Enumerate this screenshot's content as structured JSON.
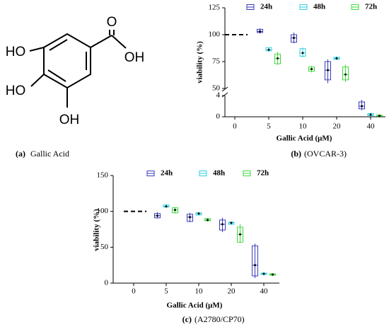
{
  "structure": {
    "atoms": [
      "HO",
      "HO",
      "OH",
      "O",
      "OH"
    ],
    "caption_label": "(a)",
    "caption": "Gallic Acid"
  },
  "chart_data": [
    {
      "type": "box",
      "caption_label": "(b)",
      "caption": "(OVCAR-3)",
      "x_label": "Gallic Acid (μM)",
      "y_label": "viability (%)",
      "categories": [
        "0",
        "5",
        "10",
        "20",
        "40"
      ],
      "ylim": [
        0,
        125
      ],
      "y_break": [
        4,
        50
      ],
      "yticks": [
        0,
        4,
        50,
        75,
        100,
        125
      ],
      "reference_value": 100,
      "legend": "top",
      "series": [
        {
          "name": "24h",
          "color": "#3a3ab8",
          "min": [
            null,
            101,
            92,
            55,
            1.2
          ],
          "q1": [
            null,
            102,
            93,
            58,
            1.5
          ],
          "median": [
            null,
            103,
            97,
            67,
            2
          ],
          "q3": [
            null,
            105,
            100,
            75,
            2.8
          ],
          "max": [
            null,
            106,
            102,
            77,
            3.2
          ]
        },
        {
          "name": "48h",
          "color": "#2fd0e0",
          "min": [
            null,
            84,
            79,
            77,
            0.1
          ],
          "q1": [
            null,
            85,
            80,
            77,
            0.2
          ],
          "median": [
            null,
            86,
            83,
            78,
            0.4
          ],
          "q3": [
            null,
            88,
            87,
            79,
            0.6
          ],
          "max": [
            null,
            88,
            88,
            80,
            0.8
          ]
        },
        {
          "name": "72h",
          "color": "#3fd83f",
          "min": [
            null,
            72,
            65,
            56,
            0
          ],
          "q1": [
            null,
            73,
            66,
            58,
            0.1
          ],
          "median": [
            null,
            78,
            68,
            63,
            0.2
          ],
          "q3": [
            null,
            82,
            70,
            70,
            0.3
          ],
          "max": [
            null,
            84,
            71,
            72,
            0.4
          ]
        }
      ]
    },
    {
      "type": "box",
      "caption_label": "(c)",
      "caption": "(A2780/CP70)",
      "x_label": "Gallic Acid (μM)",
      "y_label": "viability (%)",
      "categories": [
        "0",
        "5",
        "10",
        "20",
        "40"
      ],
      "ylim": [
        0,
        150
      ],
      "yticks": [
        0,
        50,
        100,
        150
      ],
      "reference_value": 100,
      "legend": "top",
      "series": [
        {
          "name": "24h",
          "color": "#3a3ab8",
          "min": [
            null,
            90,
            85,
            71,
            7
          ],
          "q1": [
            null,
            91,
            86,
            74,
            10
          ],
          "median": [
            null,
            94,
            92,
            82,
            25
          ],
          "q3": [
            null,
            97,
            96,
            88,
            52
          ],
          "max": [
            null,
            99,
            98,
            91,
            55
          ]
        },
        {
          "name": "48h",
          "color": "#2fd0e0",
          "min": [
            null,
            105,
            94,
            81,
            11
          ],
          "q1": [
            null,
            106,
            95,
            82,
            12
          ],
          "median": [
            null,
            107,
            97,
            84,
            13
          ],
          "q3": [
            null,
            109,
            98,
            85,
            14
          ],
          "max": [
            null,
            110,
            99,
            86,
            15
          ]
        },
        {
          "name": "72h",
          "color": "#3fd83f",
          "min": [
            null,
            97,
            86,
            56,
            10
          ],
          "q1": [
            null,
            98,
            87,
            57,
            11
          ],
          "median": [
            null,
            102,
            88,
            68,
            12
          ],
          "q3": [
            null,
            105,
            90,
            78,
            13
          ],
          "max": [
            null,
            106,
            91,
            82,
            13
          ]
        }
      ]
    }
  ]
}
